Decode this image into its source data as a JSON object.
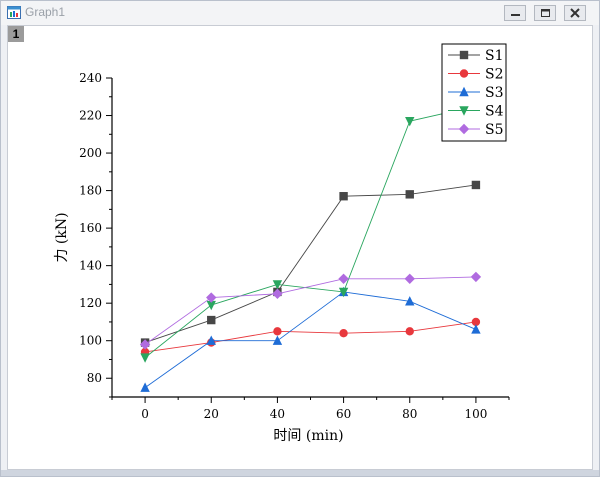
{
  "window": {
    "title": "Graph1",
    "layer_label": "1",
    "controls": [
      "minimize",
      "maximize",
      "close"
    ]
  },
  "icons": {
    "app": "graph-window-icon",
    "minimize": "minimize-icon",
    "maximize": "maximize-icon",
    "close": "close-icon"
  },
  "chart_data": {
    "type": "line",
    "title": "",
    "xlabel": "时间 (min)",
    "ylabel": "力 (kN)",
    "x": [
      0,
      20,
      40,
      60,
      80,
      100
    ],
    "x_ticks": [
      0,
      20,
      40,
      60,
      80,
      100
    ],
    "y_ticks": [
      80,
      100,
      120,
      140,
      160,
      180,
      200,
      220,
      240
    ],
    "xlim": [
      -10,
      110
    ],
    "ylim": [
      70,
      240
    ],
    "grid": false,
    "legend_position": "top-right",
    "series": [
      {
        "name": "S1",
        "color": "#474747",
        "marker": "square",
        "values": [
          99,
          111,
          126,
          177,
          178,
          183
        ]
      },
      {
        "name": "S2",
        "color": "#e8383d",
        "marker": "circle",
        "values": [
          94,
          99,
          105,
          104,
          105,
          110
        ]
      },
      {
        "name": "S3",
        "color": "#1e6cd6",
        "marker": "triangle-up",
        "values": [
          75,
          100,
          100,
          126,
          121,
          106
        ]
      },
      {
        "name": "S4",
        "color": "#2aa65f",
        "marker": "triangle-down",
        "values": [
          91,
          119,
          130,
          126,
          217,
          225
        ]
      },
      {
        "name": "S5",
        "color": "#b06be0",
        "marker": "diamond",
        "values": [
          98,
          123,
          125,
          133,
          133,
          134
        ]
      }
    ]
  }
}
